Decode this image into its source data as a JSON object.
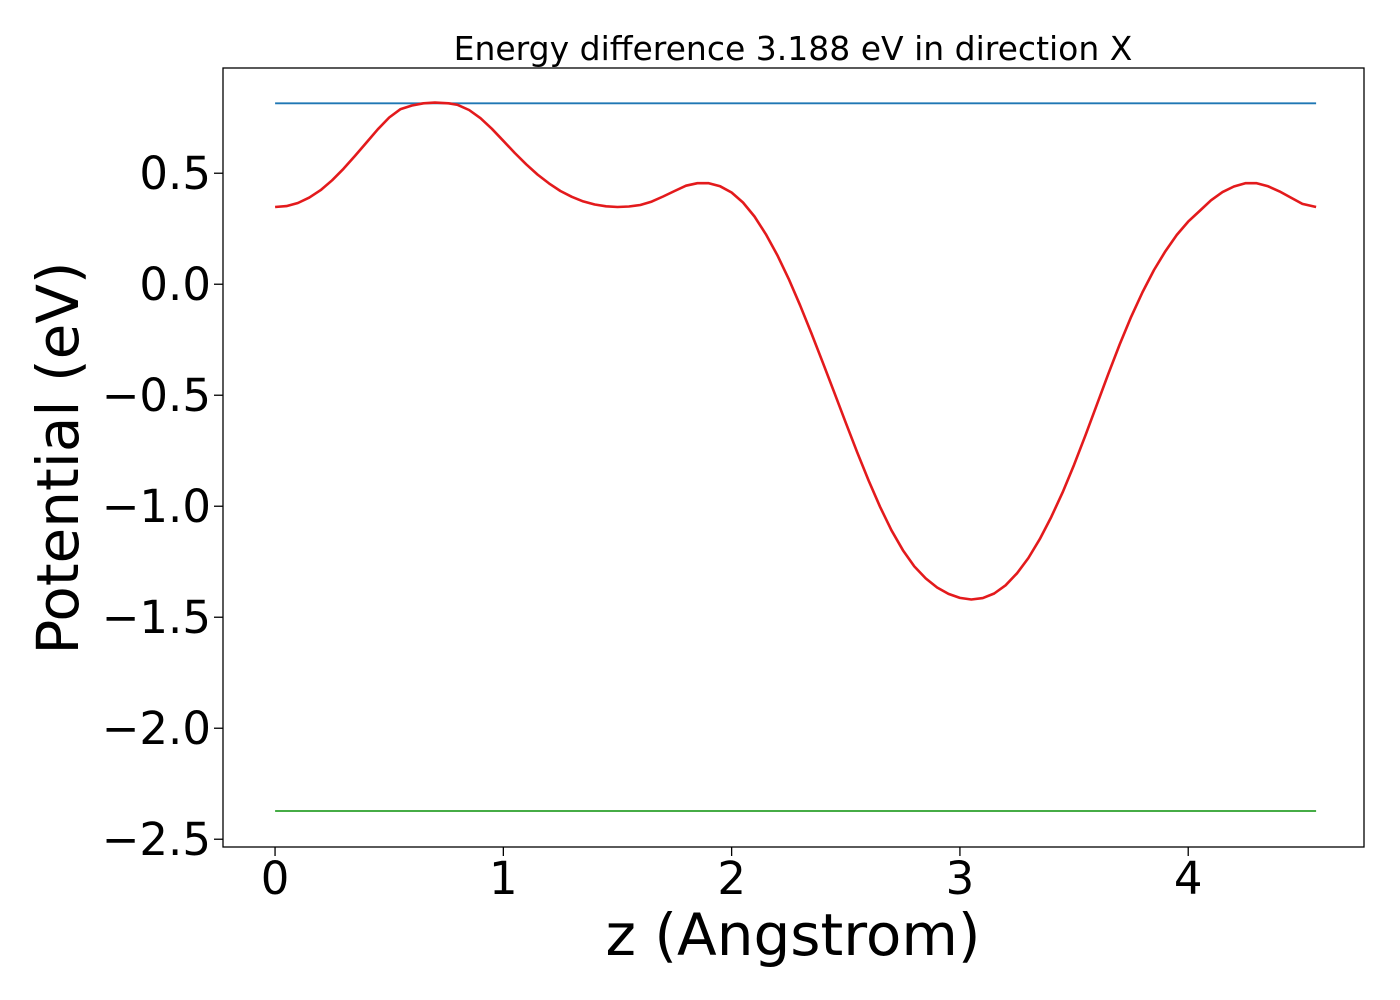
{
  "chart_data": {
    "type": "line",
    "title": "Energy difference 3.188 eV in direction X",
    "xlabel": "z (Angstrom)",
    "ylabel": "Potential (eV)",
    "xlim": [
      -0.228,
      4.77
    ],
    "ylim": [
      -2.535,
      0.974
    ],
    "grid": false,
    "legend": "none",
    "x_ticks": [
      0,
      1,
      2,
      3,
      4
    ],
    "x_tick_labels": [
      "0",
      "1",
      "2",
      "3",
      "4"
    ],
    "y_ticks": [
      0.5,
      0.0,
      -0.5,
      -1.0,
      -1.5,
      -2.0,
      -2.5
    ],
    "y_tick_labels": [
      "0.5",
      "0.0",
      "−0.5",
      "−1.0",
      "−1.5",
      "−2.0",
      "−2.5"
    ],
    "series": [
      {
        "color": "#1f77b4",
        "x": [
          0,
          4.56
        ],
        "y": [
          0.815,
          0.815
        ]
      },
      {
        "color": "#2ca02c",
        "x": [
          0,
          4.56
        ],
        "y": [
          -2.373,
          -2.373
        ]
      },
      {
        "color": "#e31a1c",
        "x": [
          0,
          0.05,
          0.1,
          0.15,
          0.2,
          0.25,
          0.3,
          0.35,
          0.4,
          0.45,
          0.5,
          0.55,
          0.6,
          0.65,
          0.7,
          0.76,
          0.8,
          0.85,
          0.9,
          0.95,
          1.0,
          1.05,
          1.1,
          1.15,
          1.2,
          1.25,
          1.3,
          1.35,
          1.4,
          1.45,
          1.5,
          1.55,
          1.6,
          1.65,
          1.7,
          1.75,
          1.8,
          1.85,
          1.9,
          1.95,
          2.0,
          2.05,
          2.1,
          2.15,
          2.2,
          2.25,
          2.3,
          2.35,
          2.4,
          2.45,
          2.5,
          2.55,
          2.6,
          2.65,
          2.7,
          2.75,
          2.8,
          2.85,
          2.9,
          2.95,
          3.0,
          3.05,
          3.1,
          3.15,
          3.2,
          3.25,
          3.3,
          3.35,
          3.4,
          3.45,
          3.5,
          3.55,
          3.6,
          3.65,
          3.7,
          3.75,
          3.8,
          3.85,
          3.9,
          3.95,
          4.0,
          4.05,
          4.1,
          4.15,
          4.2,
          4.25,
          4.3,
          4.35,
          4.4,
          4.45,
          4.5,
          4.56
        ],
        "y": [
          0.348,
          0.352,
          0.366,
          0.39,
          0.424,
          0.468,
          0.52,
          0.578,
          0.638,
          0.698,
          0.751,
          0.789,
          0.805,
          0.815,
          0.818,
          0.815,
          0.808,
          0.785,
          0.748,
          0.7,
          0.646,
          0.591,
          0.54,
          0.494,
          0.454,
          0.42,
          0.394,
          0.373,
          0.359,
          0.351,
          0.348,
          0.35,
          0.357,
          0.372,
          0.395,
          0.42,
          0.444,
          0.455,
          0.455,
          0.441,
          0.413,
          0.368,
          0.305,
          0.225,
          0.131,
          0.024,
          -0.095,
          -0.222,
          -0.354,
          -0.489,
          -0.624,
          -0.757,
          -0.884,
          -1.002,
          -1.108,
          -1.198,
          -1.271,
          -1.325,
          -1.366,
          -1.395,
          -1.413,
          -1.42,
          -1.414,
          -1.393,
          -1.356,
          -1.302,
          -1.233,
          -1.148,
          -1.049,
          -0.937,
          -0.813,
          -0.68,
          -0.542,
          -0.404,
          -0.271,
          -0.147,
          -0.035,
          0.064,
          0.149,
          0.222,
          0.282,
          0.33,
          0.378,
          0.415,
          0.44,
          0.455,
          0.455,
          0.441,
          0.418,
          0.39,
          0.362,
          0.348
        ]
      }
    ]
  }
}
